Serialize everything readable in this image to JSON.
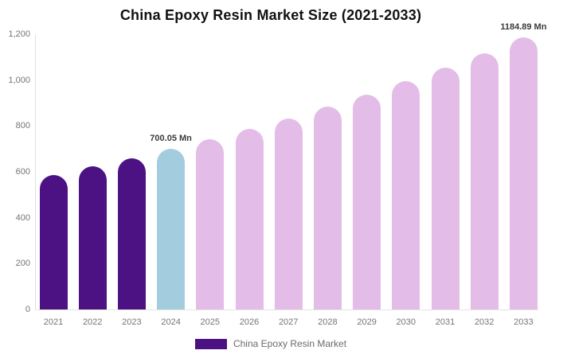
{
  "title": "China Epoxy Resin Market Size (2021-2033)",
  "legend": {
    "label": "China Epoxy Resin Market",
    "swatch_color": "#4C1182"
  },
  "colors": {
    "historical_bar": "#4C1182",
    "highlight_bar": "#A3CCDF",
    "forecast_bar": "#E4BCE8",
    "axis_line": "#E0E0E0",
    "tick_text": "#757575",
    "annotation_text": "#3B3B3B",
    "title_text": "#111111"
  },
  "chart_data": {
    "type": "bar",
    "title": "China Epoxy Resin Market Size (2021-2033)",
    "unit": "Mn",
    "categories": [
      "2021",
      "2022",
      "2023",
      "2024",
      "2025",
      "2026",
      "2027",
      "2028",
      "2029",
      "2030",
      "2031",
      "2032",
      "2033"
    ],
    "values": [
      587,
      623,
      660,
      700.05,
      742,
      787,
      834,
      885,
      938,
      994,
      1054,
      1118,
      1184.89
    ],
    "bar_colors": [
      "#4C1182",
      "#4C1182",
      "#4C1182",
      "#A3CCDF",
      "#E4BCE8",
      "#E4BCE8",
      "#E4BCE8",
      "#E4BCE8",
      "#E4BCE8",
      "#E4BCE8",
      "#E4BCE8",
      "#E4BCE8",
      "#E4BCE8"
    ],
    "highlight_year": "2024",
    "ylim": [
      0,
      1200
    ],
    "yticks": [
      {
        "value": 0,
        "label": "0"
      },
      {
        "value": 200,
        "label": "200"
      },
      {
        "value": 400,
        "label": "400"
      },
      {
        "value": 600,
        "label": "600"
      },
      {
        "value": 800,
        "label": "800"
      },
      {
        "value": 1000,
        "label": "1,000"
      },
      {
        "value": 1200,
        "label": "1,200"
      }
    ],
    "grid": false,
    "legend_position": "bottom",
    "annotations": [
      {
        "category": "2024",
        "text": "700.05 Mn"
      },
      {
        "category": "2033",
        "text": "1184.89 Mn"
      }
    ]
  }
}
